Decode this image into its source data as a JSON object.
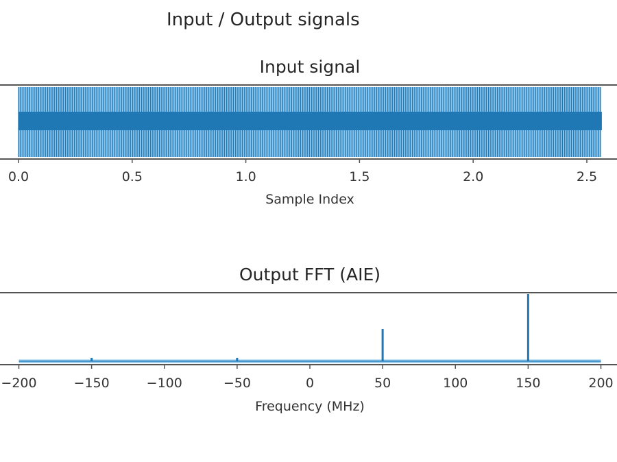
{
  "figure": {
    "suptitle": "Input / Output signals"
  },
  "colors": {
    "series": "#1f77b4",
    "series_light": "#8cc4ea",
    "spine": "#555555",
    "text": "#262626"
  },
  "chart_data": [
    {
      "type": "line",
      "title": "Input signal",
      "xlabel": "Sample Index",
      "ylabel": "",
      "x_ticks": [
        0.0,
        0.5,
        1.0,
        1.5,
        2.0,
        2.5
      ],
      "x_tick_labels": [
        "0.0",
        "0.5",
        "1.0",
        "1.5",
        "2.0",
        "2.5"
      ],
      "xlim": [
        -0.01,
        2.64
      ],
      "data_range": [
        0.0,
        2.56
      ],
      "y_ticks_visible": false,
      "description": "Dense high-frequency oscillation filling the full y-range; thick dark band around center",
      "grid": false,
      "legend": null
    },
    {
      "type": "line",
      "title": "Output FFT (AIE)",
      "xlabel": "Frequency (MHz)",
      "ylabel": "",
      "x_ticks": [
        -200,
        -150,
        -100,
        -50,
        0,
        50,
        100,
        150,
        200
      ],
      "x_tick_labels": [
        "−200",
        "−150",
        "−100",
        "−50",
        "0",
        "50",
        "100",
        "150",
        "200"
      ],
      "xlim": [
        -205,
        205
      ],
      "y_ticks_visible": false,
      "peaks": [
        {
          "frequency": -150,
          "relative_magnitude": 0.05
        },
        {
          "frequency": -50,
          "relative_magnitude": 0.05
        },
        {
          "frequency": 50,
          "relative_magnitude": 0.48
        },
        {
          "frequency": 150,
          "relative_magnitude": 1.0
        }
      ],
      "baseline_magnitude": 0.0,
      "grid": false,
      "legend": null
    }
  ]
}
